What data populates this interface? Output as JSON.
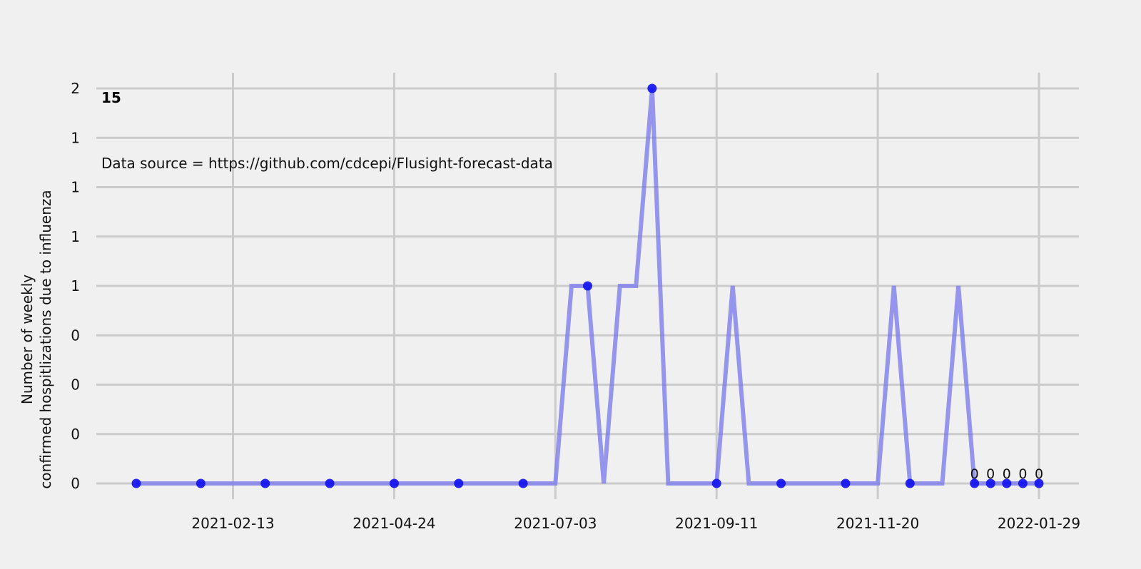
{
  "chart_data": {
    "type": "line",
    "title": "",
    "ylabel_line1": "Number of weekly",
    "ylabel_line2": "confirmed hospitlizations due to influenza",
    "annotation_number": "15",
    "annotation_source": "Data source = https://github.com/cdcepi/Flusight-forecast-data",
    "ylim": [
      0,
      2
    ],
    "ytick_values": [
      0,
      0.25,
      0.5,
      0.75,
      1,
      1.25,
      1.5,
      1.75,
      2
    ],
    "ytick_labels": [
      "0",
      "0",
      "0",
      "0",
      "1",
      "1",
      "1",
      "1",
      "2"
    ],
    "xtick_labels": [
      "2021-02-13",
      "2021-04-24",
      "2021-07-03",
      "2021-09-11",
      "2021-11-20",
      "2022-01-29"
    ],
    "grid": true,
    "series": [
      {
        "color": "#7777ee",
        "x": [
          "2021-01-02",
          "2021-01-09",
          "2021-01-16",
          "2021-01-23",
          "2021-01-30",
          "2021-02-06",
          "2021-02-13",
          "2021-02-20",
          "2021-02-27",
          "2021-03-06",
          "2021-03-13",
          "2021-03-20",
          "2021-03-27",
          "2021-04-03",
          "2021-04-10",
          "2021-04-17",
          "2021-04-24",
          "2021-05-01",
          "2021-05-08",
          "2021-05-15",
          "2021-05-22",
          "2021-05-29",
          "2021-06-05",
          "2021-06-12",
          "2021-06-19",
          "2021-06-26",
          "2021-07-03",
          "2021-07-10",
          "2021-07-17",
          "2021-07-24",
          "2021-07-31",
          "2021-08-07",
          "2021-08-14",
          "2021-08-21",
          "2021-08-28",
          "2021-09-04",
          "2021-09-11",
          "2021-09-18",
          "2021-09-25",
          "2021-10-02",
          "2021-10-09",
          "2021-10-16",
          "2021-10-23",
          "2021-10-30",
          "2021-11-06",
          "2021-11-13",
          "2021-11-20",
          "2021-11-27",
          "2021-12-04",
          "2021-12-11",
          "2021-12-18",
          "2021-12-25",
          "2022-01-01",
          "2022-01-08",
          "2022-01-15",
          "2022-01-22",
          "2022-01-29"
        ],
        "y": [
          0,
          0,
          0,
          0,
          0,
          0,
          0,
          0,
          0,
          0,
          0,
          0,
          0,
          0,
          0,
          0,
          0,
          0,
          0,
          0,
          0,
          0,
          0,
          0,
          0,
          0,
          0,
          1,
          1,
          0,
          1,
          1,
          2,
          0,
          0,
          0,
          0,
          1,
          0,
          0,
          0,
          0,
          0,
          0,
          0,
          0,
          0,
          1,
          0,
          0,
          0,
          1,
          0,
          0,
          0,
          0,
          0
        ]
      }
    ],
    "points": {
      "color": "#1010ee",
      "x": [
        "2021-01-02",
        "2021-01-30",
        "2021-02-27",
        "2021-03-27",
        "2021-04-24",
        "2021-05-22",
        "2021-06-19",
        "2021-07-17",
        "2021-08-14",
        "2021-09-11",
        "2021-10-09",
        "2021-11-06",
        "2021-12-04",
        "2022-01-01",
        "2022-01-08",
        "2022-01-15",
        "2022-01-22",
        "2022-01-29"
      ],
      "y": [
        0,
        0,
        0,
        0,
        0,
        0,
        0,
        1,
        2,
        0,
        0,
        0,
        0,
        0,
        0,
        0,
        0,
        0
      ]
    },
    "data_labels": {
      "x": [
        "2022-01-01",
        "2022-01-08",
        "2022-01-15",
        "2022-01-22",
        "2022-01-29"
      ],
      "text": [
        "0",
        "0",
        "0",
        "0",
        "0"
      ]
    }
  }
}
